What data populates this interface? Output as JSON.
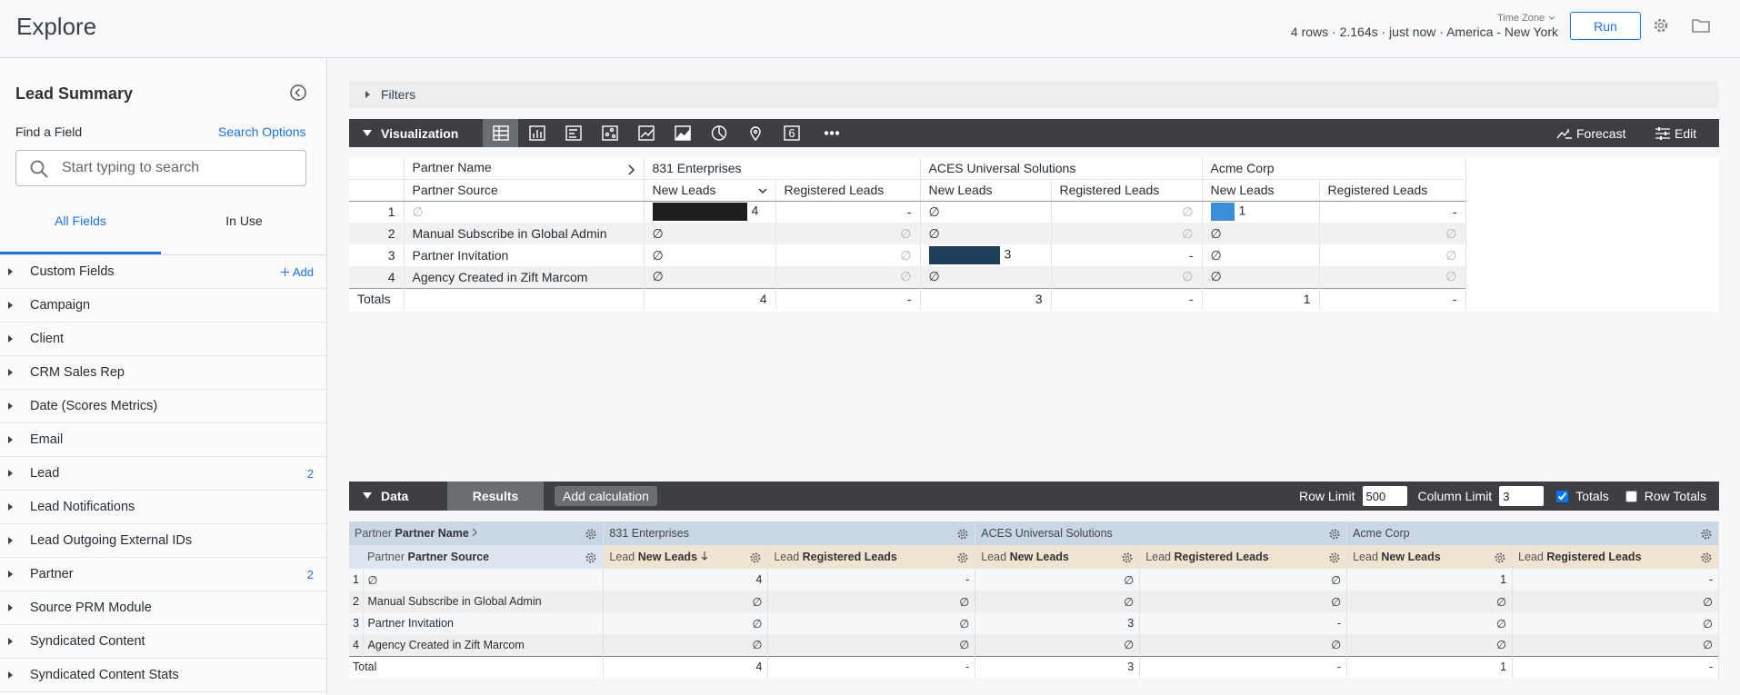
{
  "header": {
    "title": "Explore",
    "time_zone": "Time Zone",
    "status": "4 rows · 2.164s · just now · America - New York",
    "run": "Run"
  },
  "sidebar": {
    "title": "Lead Summary",
    "find_label": "Find a Field",
    "search_options": "Search Options",
    "search_placeholder": "Start typing to search",
    "tabs": [
      "All Fields",
      "In Use"
    ],
    "fields": [
      {
        "name": "Custom Fields",
        "add": "Add"
      },
      {
        "name": "Campaign"
      },
      {
        "name": "Client"
      },
      {
        "name": "CRM Sales Rep"
      },
      {
        "name": "Date (Scores Metrics)"
      },
      {
        "name": "Email"
      },
      {
        "name": "Lead",
        "count": 2
      },
      {
        "name": "Lead Notifications"
      },
      {
        "name": "Lead Outgoing External IDs"
      },
      {
        "name": "Partner",
        "count": 2
      },
      {
        "name": "Source PRM Module"
      },
      {
        "name": "Syndicated Content"
      },
      {
        "name": "Syndicated Content Stats"
      }
    ]
  },
  "filters": "Filters",
  "visualization": {
    "label": "Visualization",
    "single_value_icon": "6",
    "forecast": "Forecast",
    "edit": "Edit",
    "pivot_header": "Partner Name",
    "row_header": "Partner Source",
    "pivots": [
      "831 Enterprises",
      "ACES Universal Solutions",
      "Acme Corp"
    ],
    "bar_colors": [
      "#1f1f1f",
      "#1d3f5c",
      "#3a8fd8"
    ],
    "measures": [
      "New Leads",
      "Registered Leads"
    ],
    "rows": [
      {
        "index": 1,
        "source": "∅",
        "cells": [
          4,
          "-",
          "∅",
          "∅",
          1,
          "-"
        ]
      },
      {
        "index": 2,
        "source": "Manual Subscribe in Global Admin",
        "cells": [
          "∅",
          "∅",
          "∅",
          "∅",
          "∅",
          "∅"
        ]
      },
      {
        "index": 3,
        "source": "Partner Invitation",
        "cells": [
          "∅",
          "∅",
          3,
          "-",
          "∅",
          "∅"
        ]
      },
      {
        "index": 4,
        "source": "Agency Created in Zift Marcom",
        "cells": [
          "∅",
          "∅",
          "∅",
          "∅",
          "∅",
          "∅"
        ]
      }
    ],
    "totals_label": "Totals",
    "totals": [
      4,
      "-",
      3,
      "-",
      1,
      "-"
    ]
  },
  "data_panel": {
    "label": "Data",
    "results": "Results",
    "add_calculation": "Add calculation",
    "row_limit_label": "Row Limit",
    "row_limit": 500,
    "column_limit_label": "Column Limit",
    "column_limit": 3,
    "totals_label": "Totals",
    "totals_checked": true,
    "row_totals_label": "Row Totals",
    "row_totals_checked": false
  },
  "data_table": {
    "pivot_header": {
      "view": "Partner",
      "field": "Partner Name"
    },
    "row_header": {
      "view": "Partner",
      "field": "Partner Source"
    },
    "pivots": [
      "831 Enterprises",
      "ACES Universal Solutions",
      "Acme Corp"
    ],
    "measures": [
      {
        "view": "Lead",
        "field": "New Leads"
      },
      {
        "view": "Lead",
        "field": "Registered Leads"
      }
    ],
    "rows": [
      {
        "index": 1,
        "source": "∅",
        "cells": [
          4,
          "-",
          "∅",
          "∅",
          1,
          "-"
        ]
      },
      {
        "index": 2,
        "source": "Manual Subscribe in Global Admin",
        "cells": [
          "∅",
          "∅",
          "∅",
          "∅",
          "∅",
          "∅"
        ]
      },
      {
        "index": 3,
        "source": "Partner Invitation",
        "cells": [
          "∅",
          "∅",
          3,
          "-",
          "∅",
          "∅"
        ]
      },
      {
        "index": 4,
        "source": "Agency Created in Zift Marcom",
        "cells": [
          "∅",
          "∅",
          "∅",
          "∅",
          "∅",
          "∅"
        ]
      }
    ],
    "total_label": "Total",
    "totals": [
      4,
      "-",
      3,
      "-",
      1,
      "-"
    ]
  }
}
